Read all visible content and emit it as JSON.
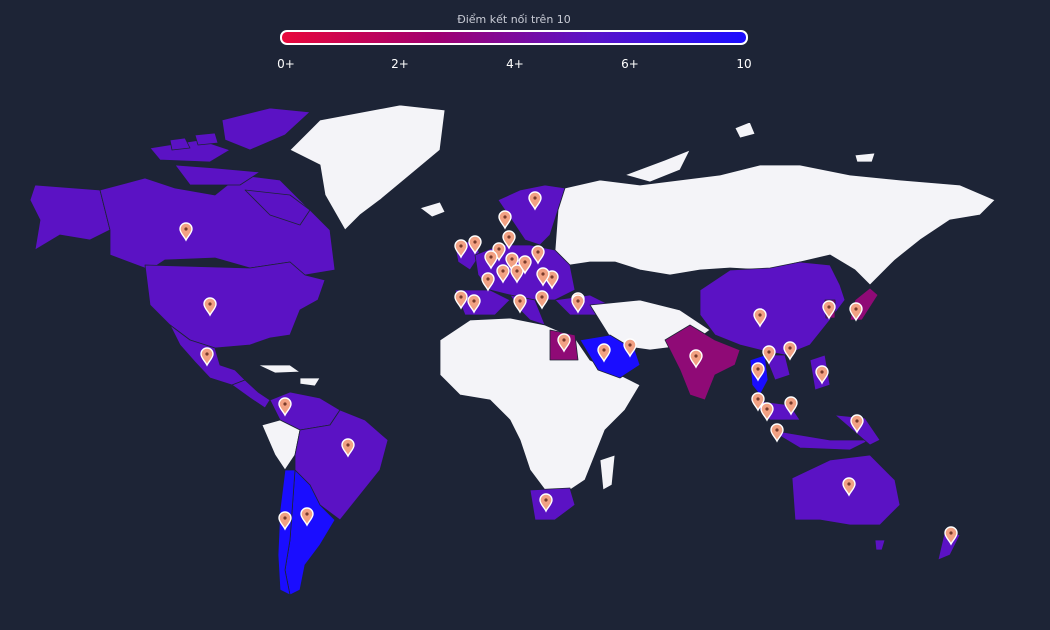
{
  "legend": {
    "title": "Điểm kết nối trên 10",
    "gradient": [
      "#e8083b",
      "#a00070",
      "#5a14c8",
      "#1b0dff"
    ],
    "ticks": [
      "0+",
      "2+",
      "4+",
      "6+",
      "10"
    ]
  },
  "colors": {
    "background": "#1d2436",
    "no_data": "#f4f4f8",
    "score_low": "#8f0a76",
    "score_mid": "#5b12c4",
    "score_high": "#1a0dff",
    "pin": "#f2a183"
  },
  "map": {
    "type": "choropleth",
    "projection": "world",
    "regions": [
      {
        "name": "Canada",
        "color": "#5b12c4"
      },
      {
        "name": "Greenland",
        "color": "#f4f4f8"
      },
      {
        "name": "United States",
        "color": "#5b12c4"
      },
      {
        "name": "Alaska",
        "color": "#5b12c4"
      },
      {
        "name": "Mexico",
        "color": "#5b12c4"
      },
      {
        "name": "Central America",
        "color": "#5b12c4"
      },
      {
        "name": "Colombia",
        "color": "#5b12c4"
      },
      {
        "name": "Venezuela",
        "color": "#5b12c4"
      },
      {
        "name": "Brazil",
        "color": "#5b12c4"
      },
      {
        "name": "Chile",
        "color": "#1a0dff"
      },
      {
        "name": "Argentina",
        "color": "#1a0dff"
      },
      {
        "name": "Europe",
        "color": "#5b12c4"
      },
      {
        "name": "Russia",
        "color": "#f4f4f8"
      },
      {
        "name": "Africa",
        "color": "#f4f4f8"
      },
      {
        "name": "Egypt",
        "color": "#8f0a76"
      },
      {
        "name": "South Africa",
        "color": "#5b12c4"
      },
      {
        "name": "Saudi Arabia",
        "color": "#1a0dff"
      },
      {
        "name": "India",
        "color": "#8f0a76"
      },
      {
        "name": "China",
        "color": "#5b12c4"
      },
      {
        "name": "Japan",
        "color": "#8f0a76"
      },
      {
        "name": "Thailand",
        "color": "#1a0dff"
      },
      {
        "name": "Indonesia",
        "color": "#5b12c4"
      },
      {
        "name": "Philippines",
        "color": "#5b12c4"
      },
      {
        "name": "Australia",
        "color": "#5b12c4"
      },
      {
        "name": "New Zealand",
        "color": "#5b12c4"
      }
    ],
    "markers": [
      {
        "id": "canada"
      },
      {
        "id": "usa"
      },
      {
        "id": "mexico"
      },
      {
        "id": "colombia"
      },
      {
        "id": "brazil"
      },
      {
        "id": "chile"
      },
      {
        "id": "argentina"
      },
      {
        "id": "uk"
      },
      {
        "id": "ireland"
      },
      {
        "id": "norway"
      },
      {
        "id": "sweden"
      },
      {
        "id": "finland"
      },
      {
        "id": "denmark"
      },
      {
        "id": "netherlands"
      },
      {
        "id": "belgium"
      },
      {
        "id": "germany"
      },
      {
        "id": "poland"
      },
      {
        "id": "france"
      },
      {
        "id": "switzerland"
      },
      {
        "id": "austria"
      },
      {
        "id": "czechia"
      },
      {
        "id": "hungary"
      },
      {
        "id": "romania"
      },
      {
        "id": "portugal"
      },
      {
        "id": "spain"
      },
      {
        "id": "italy"
      },
      {
        "id": "greece"
      },
      {
        "id": "turkey"
      },
      {
        "id": "egypt"
      },
      {
        "id": "saudi-arabia"
      },
      {
        "id": "uae"
      },
      {
        "id": "india"
      },
      {
        "id": "china"
      },
      {
        "id": "korea"
      },
      {
        "id": "japan"
      },
      {
        "id": "vietnam"
      },
      {
        "id": "hong-kong"
      },
      {
        "id": "thailand"
      },
      {
        "id": "philippines"
      },
      {
        "id": "malaysia"
      },
      {
        "id": "singapore"
      },
      {
        "id": "indonesia-north"
      },
      {
        "id": "indonesia"
      },
      {
        "id": "papua"
      },
      {
        "id": "australia"
      },
      {
        "id": "new-zealand"
      },
      {
        "id": "south-africa"
      }
    ]
  }
}
